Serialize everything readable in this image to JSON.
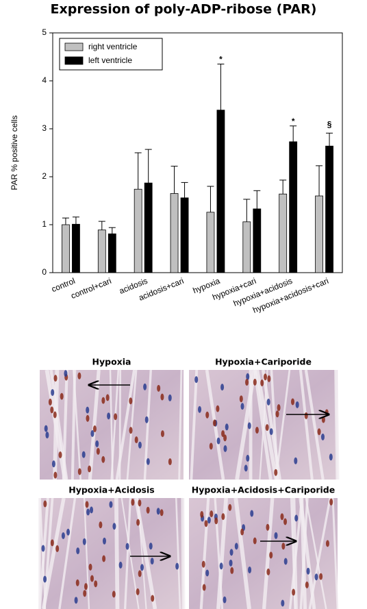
{
  "chart_data": {
    "type": "bar",
    "title": "Expression of poly-ADP-ribose (PAR)",
    "y_label": "PAR % positive cells",
    "categories": [
      "control",
      "control+cari",
      "acidosis",
      "acidosis+cari",
      "hypoxia",
      "hypoxia+cari",
      "hypoxia+acidosis",
      "hypoxia+acidosis+cari"
    ],
    "series": [
      {
        "name": "right ventricle",
        "color": "#c0c0c0",
        "values": [
          1.0,
          0.89,
          1.74,
          1.65,
          1.26,
          1.06,
          1.64,
          1.6
        ],
        "errors": [
          0.14,
          0.18,
          0.76,
          0.57,
          0.54,
          0.47,
          0.29,
          0.63
        ]
      },
      {
        "name": "left ventricle",
        "color": "#000000",
        "values": [
          1.01,
          0.81,
          1.87,
          1.56,
          3.39,
          1.33,
          2.73,
          2.64
        ],
        "errors": [
          0.15,
          0.13,
          0.7,
          0.32,
          0.96,
          0.38,
          0.33,
          0.27
        ],
        "annotations": [
          null,
          null,
          null,
          null,
          "*",
          null,
          "*",
          "§"
        ]
      }
    ],
    "ylim": [
      0,
      5
    ],
    "yticks": [
      0,
      1,
      2,
      3,
      4,
      5
    ],
    "grid": false,
    "legend": "upper-left"
  },
  "panels": [
    {
      "title": "Hypoxia"
    },
    {
      "title": "Hypoxia+Cariporide"
    },
    {
      "title": "Hypoxia+Acidosis"
    },
    {
      "title": "Hypoxia+Acidosis+Cariporide"
    }
  ]
}
